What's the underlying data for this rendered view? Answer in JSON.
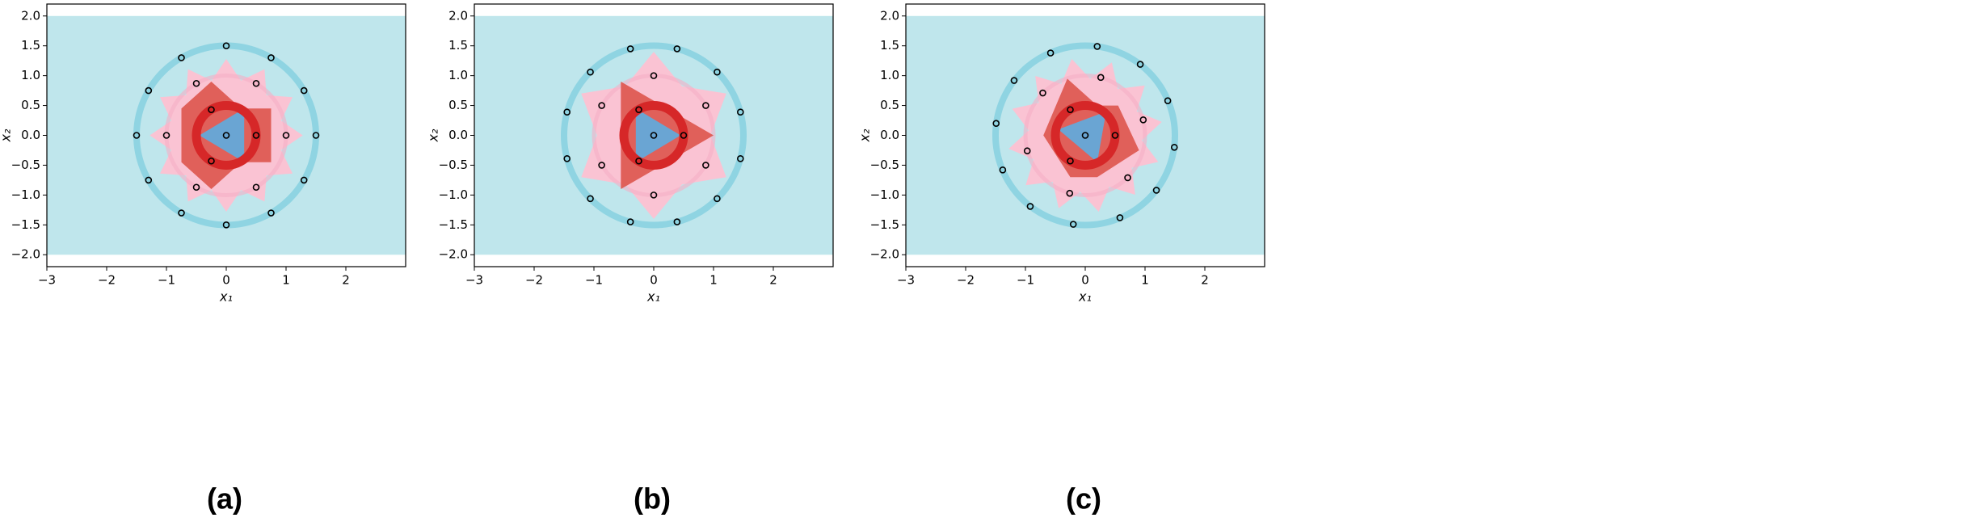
{
  "chart_data": [
    {
      "type": "scatter",
      "label": "(a)",
      "x_label": "x₁",
      "y_label": "x₂",
      "xlim": [
        -3,
        3
      ],
      "ylim": [
        -2.2,
        2.2
      ],
      "xticks": [
        {
          "value": -3,
          "label": "−3"
        },
        {
          "value": -2,
          "label": "−2"
        },
        {
          "value": -1,
          "label": "−1"
        },
        0,
        1,
        2
      ],
      "yticks": [
        {
          "value": 2,
          "label": "2.0"
        },
        {
          "value": 1.5,
          "label": "1.5"
        },
        {
          "value": 1,
          "label": "1.0"
        },
        {
          "value": 0.5,
          "label": "0.5"
        },
        {
          "value": 0,
          "label": "0.0"
        },
        {
          "value": -0.5,
          "label": "−0.5"
        },
        {
          "value": -1,
          "label": "−1.0"
        },
        {
          "value": -1.5,
          "label": "−1.5"
        },
        {
          "value": -2,
          "label": "−2.0"
        }
      ],
      "background": {
        "color": "#bfe6ec",
        "y": [
          -2,
          2
        ]
      },
      "star": {
        "color": "#fac3d3",
        "points": 12,
        "radii": [
          1.28,
          0.95
        ],
        "rotation": 0
      },
      "circles": [
        {
          "r": 1,
          "color": "#f5afc6"
        },
        {
          "r": 1.5,
          "color": "#8fd4e2"
        },
        {
          "r": 0.5,
          "color": "#d62728"
        }
      ],
      "polygons": [
        {
          "color": "#e0605a",
          "points": [
            [
              -0.75,
              0.45
            ],
            [
              -0.25,
              0.9
            ],
            [
              0.25,
              0.45
            ],
            [
              0.75,
              0.45
            ],
            [
              0.75,
              -0.45
            ],
            [
              0.25,
              -0.45
            ],
            [
              -0.25,
              -0.9
            ],
            [
              -0.75,
              -0.45
            ]
          ]
        },
        {
          "color": "#6aa5d3",
          "points": [
            [
              -0.45,
              0
            ],
            [
              0.3,
              0.45
            ],
            [
              0.3,
              -0.45
            ]
          ]
        }
      ],
      "marker_color": "#000000",
      "x": [
        1.5,
        1.3,
        0.75,
        0,
        -0.75,
        -1.3,
        -1.5,
        -1.3,
        -0.75,
        0,
        0.75,
        1.3,
        1,
        0.5,
        -0.5,
        -1,
        -0.5,
        0.5,
        0.5,
        -0.25,
        -0.25,
        0
      ],
      "y": [
        0,
        0.75,
        1.3,
        1.5,
        1.3,
        0.75,
        0,
        -0.75,
        -1.3,
        -1.5,
        -1.3,
        -0.75,
        0,
        0.87,
        0.87,
        0,
        -0.87,
        -0.87,
        0,
        0.43,
        -0.43,
        0
      ]
    },
    {
      "type": "scatter",
      "label": "(b)",
      "x_label": "x₁",
      "y_label": "x₂",
      "xlim": [
        -3,
        3
      ],
      "ylim": [
        -2.2,
        2.2
      ],
      "xticks": [
        {
          "value": -3,
          "label": "−3"
        },
        {
          "value": -2,
          "label": "−2"
        },
        {
          "value": -1,
          "label": "−1"
        },
        0,
        1,
        2
      ],
      "yticks": [
        {
          "value": 2,
          "label": "2.0"
        },
        {
          "value": 1.5,
          "label": "1.5"
        },
        {
          "value": 1,
          "label": "1.0"
        },
        {
          "value": 0.5,
          "label": "0.5"
        },
        {
          "value": 0,
          "label": "0.0"
        },
        {
          "value": -0.5,
          "label": "−0.5"
        },
        {
          "value": -1,
          "label": "−1.0"
        },
        {
          "value": -1.5,
          "label": "−1.5"
        },
        {
          "value": -2,
          "label": "−2.0"
        }
      ],
      "background": {
        "color": "#bfe6ec",
        "y": [
          -2,
          2
        ]
      },
      "star": {
        "color": "#fac3d3",
        "points": 6,
        "radii": [
          1.4,
          0.95
        ],
        "rotation": 30
      },
      "circles": [
        {
          "r": 1,
          "color": "#f5afc6"
        },
        {
          "r": 1.5,
          "color": "#8fd4e2"
        },
        {
          "r": 0.5,
          "color": "#d62728"
        }
      ],
      "polygons": [
        {
          "color": "#e0605a",
          "points": [
            [
              -0.55,
              0.9
            ],
            [
              1.0,
              0
            ],
            [
              -0.55,
              -0.9
            ]
          ]
        },
        {
          "color": "#6aa5d3",
          "points": [
            [
              0.45,
              0
            ],
            [
              -0.3,
              0.45
            ],
            [
              -0.3,
              -0.45
            ]
          ]
        }
      ],
      "marker_color": "#000000",
      "x": [
        1.45,
        1.06,
        0.39,
        -0.39,
        -1.06,
        -1.45,
        -1.45,
        -1.06,
        -0.39,
        0.39,
        1.06,
        1.45,
        0.87,
        0,
        -0.87,
        -0.87,
        0,
        0.87,
        0.5,
        -0.25,
        -0.25,
        0
      ],
      "y": [
        0.39,
        1.06,
        1.45,
        1.45,
        1.06,
        0.39,
        -0.39,
        -1.06,
        -1.45,
        -1.45,
        -1.06,
        -0.39,
        0.5,
        1,
        0.5,
        -0.5,
        -1,
        -0.5,
        0,
        0.43,
        -0.43,
        0
      ]
    },
    {
      "type": "scatter",
      "label": "(c)",
      "x_label": "x₁",
      "y_label": "x₂",
      "xlim": [
        -3,
        3
      ],
      "ylim": [
        -2.2,
        2.2
      ],
      "xticks": [
        {
          "value": -3,
          "label": "−3"
        },
        {
          "value": -2,
          "label": "−2"
        },
        {
          "value": -1,
          "label": "−1"
        },
        0,
        1,
        2
      ],
      "yticks": [
        {
          "value": 2,
          "label": "2.0"
        },
        {
          "value": 1.5,
          "label": "1.5"
        },
        {
          "value": 1,
          "label": "1.0"
        },
        {
          "value": 0.5,
          "label": "0.5"
        },
        {
          "value": 0,
          "label": "0.0"
        },
        {
          "value": -0.5,
          "label": "−0.5"
        },
        {
          "value": -1,
          "label": "−1.0"
        },
        {
          "value": -1.5,
          "label": "−1.5"
        },
        {
          "value": -2,
          "label": "−2.0"
        }
      ],
      "background": {
        "color": "#bfe6ec",
        "y": [
          -2,
          2
        ]
      },
      "star": {
        "color": "#fac3d3",
        "points": 12,
        "radii": [
          1.3,
          0.95
        ],
        "rotation": 10
      },
      "circles": [
        {
          "r": 1,
          "color": "#f5afc6"
        },
        {
          "r": 1.5,
          "color": "#8fd4e2"
        },
        {
          "r": 0.5,
          "color": "#d62728"
        }
      ],
      "polygons": [
        {
          "color": "#e0605a",
          "points": [
            [
              -0.3,
              0.95
            ],
            [
              0.2,
              0.5
            ],
            [
              0.55,
              0.5
            ],
            [
              0.9,
              -0.25
            ],
            [
              0.2,
              -0.7
            ],
            [
              -0.25,
              -0.7
            ],
            [
              -0.7,
              0
            ]
          ]
        },
        {
          "color": "#6aa5d3",
          "points": [
            [
              0.35,
              0.4
            ],
            [
              -0.45,
              0.1
            ],
            [
              0.2,
              -0.45
            ]
          ]
        }
      ],
      "marker_color": "#000000",
      "x": [
        0.2,
        0.92,
        1.38,
        1.49,
        1.19,
        0.58,
        -0.2,
        -0.92,
        -1.38,
        -1.49,
        -1.19,
        -0.58,
        0.26,
        0.97,
        0.71,
        -0.26,
        -0.97,
        -0.71,
        0.5,
        -0.25,
        -0.25,
        0
      ],
      "y": [
        1.49,
        1.19,
        0.58,
        -0.2,
        -0.92,
        -1.38,
        -1.49,
        -1.19,
        -0.58,
        0.2,
        0.92,
        1.38,
        0.97,
        0.26,
        -0.71,
        -0.97,
        -0.26,
        0.71,
        0,
        0.43,
        -0.43,
        0
      ]
    }
  ]
}
